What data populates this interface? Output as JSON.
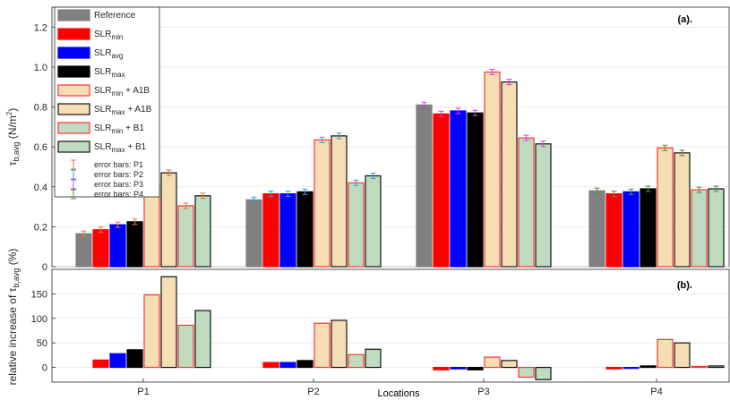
{
  "chart_data": [
    {
      "type": "bar",
      "panel_label": "(a).",
      "ylabel_main": "τ",
      "ylabel_sub": "b,avg",
      "ylabel_unit": " (N/m",
      "ylabel_sup": "2",
      "ylabel_close": ")",
      "ylim": [
        0,
        1.3
      ],
      "yticks": [
        "0",
        "0.2",
        "0.4",
        "0.6",
        "0.8",
        "1.0",
        "1.2"
      ],
      "categories": [
        "P1",
        "P2",
        "P3",
        "P4"
      ],
      "series": [
        {
          "name": "Reference",
          "values": [
            0.165,
            0.335,
            0.81,
            0.38
          ]
        },
        {
          "name": "SLR_min",
          "values": [
            0.185,
            0.365,
            0.765,
            0.365
          ]
        },
        {
          "name": "SLR_avg",
          "values": [
            0.21,
            0.365,
            0.78,
            0.375
          ]
        },
        {
          "name": "SLR_max",
          "values": [
            0.225,
            0.375,
            0.77,
            0.39
          ]
        },
        {
          "name": "SLR_min + A1B",
          "values": [
            0.405,
            0.635,
            0.975,
            0.595
          ]
        },
        {
          "name": "SLR_max + A1B",
          "values": [
            0.47,
            0.655,
            0.925,
            0.57
          ]
        },
        {
          "name": "SLR_min + B1",
          "values": [
            0.305,
            0.42,
            0.645,
            0.385
          ]
        },
        {
          "name": "SLR_max + B1",
          "values": [
            0.355,
            0.455,
            0.615,
            0.39
          ]
        }
      ],
      "grid": true,
      "legend_position": "top-left"
    },
    {
      "type": "bar",
      "panel_label": "(b).",
      "ylabel_main": "relative increase of τ",
      "ylabel_sub": "b,avg",
      "ylabel_unit": " (%)",
      "xlabel": "Locations",
      "ylim": [
        -30,
        200
      ],
      "yticks": [
        "0",
        "50",
        "100",
        "150"
      ],
      "categories": [
        "P1",
        "P2",
        "P3",
        "P4"
      ],
      "series": [
        {
          "name": "SLR_min",
          "values": [
            15,
            10,
            -5,
            -3
          ]
        },
        {
          "name": "SLR_avg",
          "values": [
            28,
            10,
            -3,
            -2
          ]
        },
        {
          "name": "SLR_max",
          "values": [
            36,
            14,
            -5,
            3
          ]
        },
        {
          "name": "SLR_min + A1B",
          "values": [
            148,
            90,
            21,
            57
          ]
        },
        {
          "name": "SLR_max + A1B",
          "values": [
            185,
            96,
            14,
            50
          ]
        },
        {
          "name": "SLR_min + B1",
          "values": [
            86,
            26,
            -20,
            2
          ]
        },
        {
          "name": "SLR_max + B1",
          "values": [
            116,
            37,
            -25,
            3
          ]
        }
      ],
      "grid": true
    }
  ],
  "legend": {
    "entries": [
      {
        "main": "Reference",
        "sub": "",
        "tail": ""
      },
      {
        "main": "SLR",
        "sub": "min",
        "tail": ""
      },
      {
        "main": "SLR",
        "sub": "avg",
        "tail": ""
      },
      {
        "main": "SLR",
        "sub": "max",
        "tail": ""
      },
      {
        "main": "SLR",
        "sub": "min",
        "tail": " + A1B"
      },
      {
        "main": "SLR",
        "sub": "max",
        "tail": " + A1B"
      },
      {
        "main": "SLR",
        "sub": "min",
        "tail": " + B1"
      },
      {
        "main": "SLR",
        "sub": "max",
        "tail": " + B1"
      }
    ],
    "errorbars": [
      "error bars: P1",
      "error bars: P2",
      "error bars: P3",
      "error bars: P4"
    ]
  },
  "styles": {
    "fills": [
      "#808080",
      "#ff0000",
      "#0000ff",
      "#000000",
      "#f5deb3",
      "#f5deb3",
      "#c0dcc0",
      "#c0dcc0"
    ],
    "strokes": [
      "#808080",
      "#ff0000",
      "#0000ff",
      "#000000",
      "#ff3333",
      "#111111",
      "#ff3333",
      "#111111"
    ],
    "errorbar_colors": [
      "#e07a38",
      "#3b9fd1",
      "#d43fe0",
      "#5a8a4a"
    ],
    "grid_color": "#e6e6e6"
  }
}
